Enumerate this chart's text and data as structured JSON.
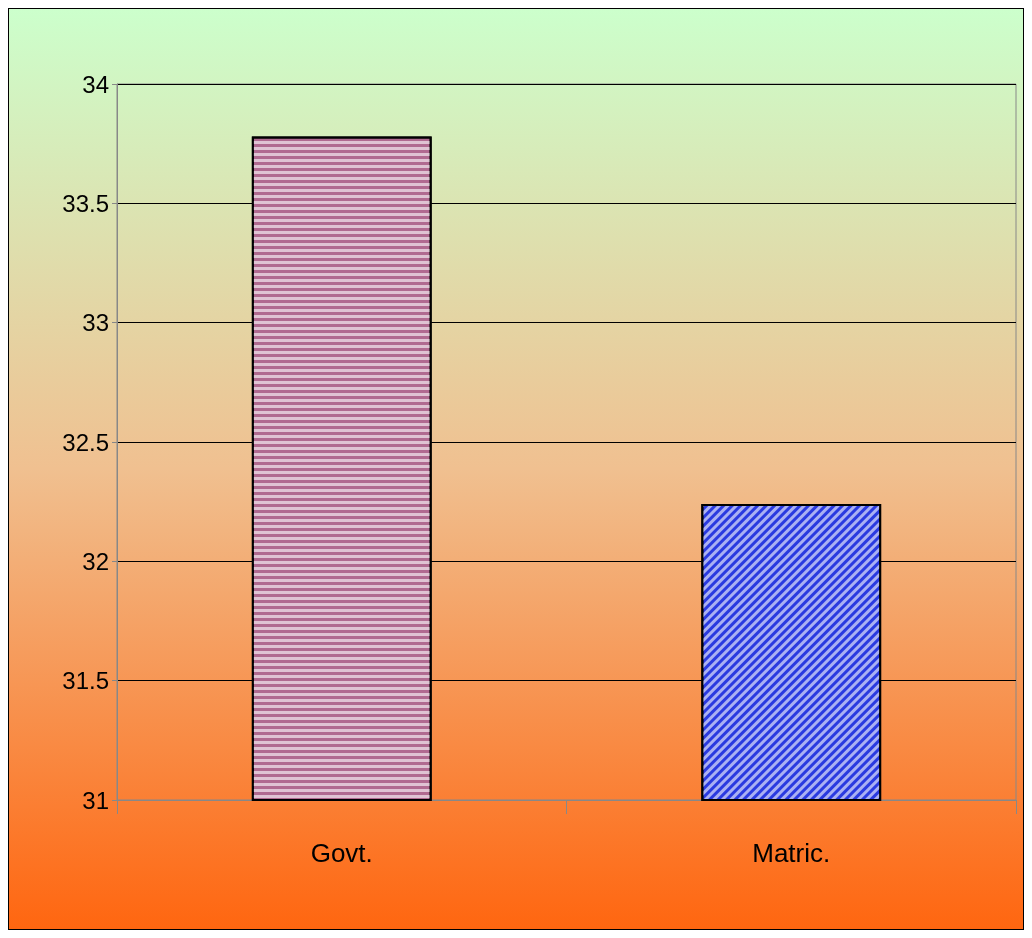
{
  "chart_data": {
    "type": "bar",
    "categories": [
      "Govt.",
      "Matric."
    ],
    "values": [
      33.78,
      32.24
    ],
    "colors": [
      "#b06a90",
      "#2a3ae0"
    ],
    "ylim": [
      31,
      34
    ],
    "yticks": [
      31,
      31.5,
      32,
      32.5,
      33,
      33.5,
      34
    ],
    "grid": "y"
  }
}
